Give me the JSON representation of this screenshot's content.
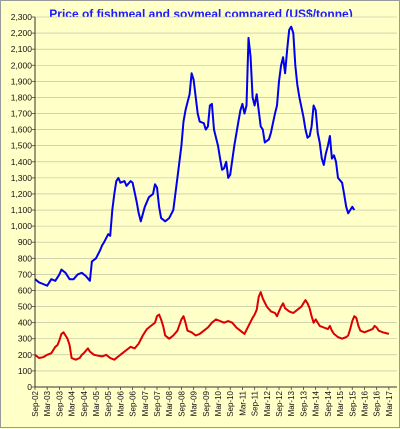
{
  "chart_data": {
    "type": "line",
    "title": "Price of fishmeal and soymeal compared (US$/tonne)",
    "xlabel": "",
    "ylabel": "",
    "ylim": [
      0,
      2300
    ],
    "y_ticks": [
      0,
      100,
      200,
      300,
      400,
      500,
      600,
      700,
      800,
      900,
      1000,
      1100,
      1200,
      1300,
      1400,
      1500,
      1600,
      1700,
      1800,
      1900,
      2000,
      2100,
      2200,
      2300
    ],
    "y_tick_labels": [
      "0",
      "100",
      "200",
      "300",
      "400",
      "500",
      "600",
      "700",
      "800",
      "900",
      "1,000",
      "1,100",
      "1,200",
      "1,300",
      "1,400",
      "1,500",
      "1,600",
      "1,700",
      "1,800",
      "1,900",
      "2,000",
      "2,100",
      "2,200",
      "2,300"
    ],
    "x_tick_labels": [
      "Sep-02",
      "Mar-03",
      "Sep-03",
      "Mar-04",
      "Sep-04",
      "Mar-05",
      "Sep-05",
      "Mar-06",
      "Sep-06",
      "Mar-07",
      "Sep-07",
      "Mar-08",
      "Sep-08",
      "Mar-09",
      "Sep-09",
      "Mar-10",
      "Sep-10",
      "Mar-11",
      "Sep-11",
      "Mar-12",
      "Sep-12",
      "Mar-13",
      "Sep-13",
      "Mar-14",
      "Sep-14",
      "Mar-15",
      "Sep-15",
      "Mar-16",
      "Sep-16",
      "Mar-17"
    ],
    "grid": true,
    "series": [
      {
        "color": "#0000ee",
        "points": [
          [
            "Sep-02",
            670
          ],
          [
            "Nov-02",
            650
          ],
          [
            "Jan-03",
            640
          ],
          [
            "Mar-03",
            630
          ],
          [
            "May-03",
            670
          ],
          [
            "Jul-03",
            660
          ],
          [
            "Sep-03",
            700
          ],
          [
            "Oct-03",
            730
          ],
          [
            "Dec-03",
            710
          ],
          [
            "Feb-04",
            670
          ],
          [
            "Apr-04",
            670
          ],
          [
            "Jun-04",
            700
          ],
          [
            "Aug-04",
            710
          ],
          [
            "Oct-04",
            690
          ],
          [
            "Dec-04",
            660
          ],
          [
            "Jan-05",
            780
          ],
          [
            "Mar-05",
            800
          ],
          [
            "May-05",
            850
          ],
          [
            "Jun-05",
            880
          ],
          [
            "Jul-05",
            900
          ],
          [
            "Sep-05",
            950
          ],
          [
            "Oct-05",
            940
          ],
          [
            "Nov-05",
            1100
          ],
          [
            "Dec-05",
            1200
          ],
          [
            "Jan-06",
            1280
          ],
          [
            "Feb-06",
            1300
          ],
          [
            "Mar-06",
            1270
          ],
          [
            "May-06",
            1280
          ],
          [
            "Jun-06",
            1250
          ],
          [
            "Aug-06",
            1280
          ],
          [
            "Sep-06",
            1270
          ],
          [
            "Nov-06",
            1150
          ],
          [
            "Dec-06",
            1080
          ],
          [
            "Jan-07",
            1030
          ],
          [
            "Mar-07",
            1120
          ],
          [
            "May-07",
            1180
          ],
          [
            "Jul-07",
            1200
          ],
          [
            "Aug-07",
            1260
          ],
          [
            "Sep-07",
            1240
          ],
          [
            "Oct-07",
            1120
          ],
          [
            "Nov-07",
            1050
          ],
          [
            "Jan-08",
            1030
          ],
          [
            "Mar-08",
            1050
          ],
          [
            "May-08",
            1100
          ],
          [
            "Jul-08",
            1300
          ],
          [
            "Sep-08",
            1500
          ],
          [
            "Oct-08",
            1650
          ],
          [
            "Nov-08",
            1720
          ],
          [
            "Dec-08",
            1770
          ],
          [
            "Jan-09",
            1820
          ],
          [
            "Feb-09",
            1950
          ],
          [
            "Mar-09",
            1910
          ],
          [
            "May-09",
            1700
          ],
          [
            "Jun-09",
            1650
          ],
          [
            "Aug-09",
            1640
          ],
          [
            "Sep-09",
            1600
          ],
          [
            "Oct-09",
            1620
          ],
          [
            "Nov-09",
            1750
          ],
          [
            "Dec-09",
            1760
          ],
          [
            "Jan-10",
            1600
          ],
          [
            "Mar-10",
            1500
          ],
          [
            "Apr-10",
            1420
          ],
          [
            "May-10",
            1350
          ],
          [
            "Jun-10",
            1360
          ],
          [
            "Jul-10",
            1400
          ],
          [
            "Aug-10",
            1300
          ],
          [
            "Sep-10",
            1320
          ],
          [
            "Nov-10",
            1500
          ],
          [
            "Jan-11",
            1650
          ],
          [
            "Feb-11",
            1720
          ],
          [
            "Mar-11",
            1760
          ],
          [
            "Apr-11",
            1700
          ],
          [
            "May-11",
            1750
          ],
          [
            "Jun-11",
            2170
          ],
          [
            "Jul-11",
            2050
          ],
          [
            "Aug-11",
            1800
          ],
          [
            "Sep-11",
            1750
          ],
          [
            "Oct-11",
            1820
          ],
          [
            "Dec-11",
            1620
          ],
          [
            "Jan-12",
            1600
          ],
          [
            "Feb-12",
            1520
          ],
          [
            "Apr-12",
            1540
          ],
          [
            "May-12",
            1580
          ],
          [
            "Jul-12",
            1700
          ],
          [
            "Aug-12",
            1750
          ],
          [
            "Sep-12",
            1900
          ],
          [
            "Oct-12",
            2000
          ],
          [
            "Nov-12",
            2050
          ],
          [
            "Dec-12",
            1950
          ],
          [
            "Jan-13",
            2100
          ],
          [
            "Feb-13",
            2220
          ],
          [
            "Mar-13",
            2240
          ],
          [
            "Apr-13",
            2200
          ],
          [
            "May-13",
            2000
          ],
          [
            "Jun-13",
            1880
          ],
          [
            "Jul-13",
            1800
          ],
          [
            "Sep-13",
            1680
          ],
          [
            "Oct-13",
            1600
          ],
          [
            "Nov-13",
            1550
          ],
          [
            "Dec-13",
            1560
          ],
          [
            "Jan-14",
            1620
          ],
          [
            "Feb-14",
            1750
          ],
          [
            "Mar-14",
            1720
          ],
          [
            "Apr-14",
            1580
          ],
          [
            "May-14",
            1520
          ],
          [
            "Jun-14",
            1420
          ],
          [
            "Jul-14",
            1380
          ],
          [
            "Aug-14",
            1450
          ],
          [
            "Sep-14",
            1500
          ],
          [
            "Oct-14",
            1560
          ],
          [
            "Nov-14",
            1420
          ],
          [
            "Dec-14",
            1440
          ],
          [
            "Jan-15",
            1400
          ],
          [
            "Feb-15",
            1300
          ],
          [
            "Apr-15",
            1270
          ],
          [
            "May-15",
            1200
          ],
          [
            "Jun-15",
            1120
          ],
          [
            "Jul-15",
            1080
          ],
          [
            "Aug-15",
            1100
          ],
          [
            "Sep-15",
            1120
          ],
          [
            "Oct-15",
            1100
          ]
        ]
      },
      {
        "color": "#dd0000",
        "points": [
          [
            "Sep-02",
            200
          ],
          [
            "Nov-02",
            180
          ],
          [
            "Jan-03",
            185
          ],
          [
            "Mar-03",
            200
          ],
          [
            "May-03",
            210
          ],
          [
            "Jul-03",
            250
          ],
          [
            "Aug-03",
            260
          ],
          [
            "Sep-03",
            290
          ],
          [
            "Oct-03",
            330
          ],
          [
            "Nov-03",
            340
          ],
          [
            "Dec-03",
            320
          ],
          [
            "Jan-04",
            300
          ],
          [
            "Feb-04",
            260
          ],
          [
            "Mar-04",
            180
          ],
          [
            "May-04",
            170
          ],
          [
            "Jul-04",
            180
          ],
          [
            "Aug-04",
            200
          ],
          [
            "Sep-04",
            210
          ],
          [
            "Nov-04",
            240
          ],
          [
            "Dec-04",
            220
          ],
          [
            "Feb-05",
            200
          ],
          [
            "Apr-05",
            195
          ],
          [
            "Jun-05",
            190
          ],
          [
            "Aug-05",
            200
          ],
          [
            "Oct-05",
            180
          ],
          [
            "Dec-05",
            170
          ],
          [
            "Feb-06",
            190
          ],
          [
            "Apr-06",
            210
          ],
          [
            "Jun-06",
            230
          ],
          [
            "Aug-06",
            250
          ],
          [
            "Oct-06",
            240
          ],
          [
            "Dec-06",
            270
          ],
          [
            "Feb-07",
            320
          ],
          [
            "Apr-07",
            360
          ],
          [
            "Jun-07",
            380
          ],
          [
            "Aug-07",
            400
          ],
          [
            "Sep-07",
            440
          ],
          [
            "Oct-07",
            450
          ],
          [
            "Nov-07",
            420
          ],
          [
            "Dec-07",
            380
          ],
          [
            "Jan-08",
            320
          ],
          [
            "Mar-08",
            300
          ],
          [
            "May-08",
            320
          ],
          [
            "Jul-08",
            350
          ],
          [
            "Sep-08",
            420
          ],
          [
            "Oct-08",
            440
          ],
          [
            "Nov-08",
            400
          ],
          [
            "Dec-08",
            350
          ],
          [
            "Feb-09",
            340
          ],
          [
            "Apr-09",
            320
          ],
          [
            "Jun-09",
            330
          ],
          [
            "Aug-09",
            350
          ],
          [
            "Oct-09",
            370
          ],
          [
            "Dec-09",
            400
          ],
          [
            "Feb-10",
            420
          ],
          [
            "Apr-10",
            410
          ],
          [
            "Jun-10",
            400
          ],
          [
            "Aug-10",
            410
          ],
          [
            "Oct-10",
            400
          ],
          [
            "Dec-10",
            370
          ],
          [
            "Feb-11",
            350
          ],
          [
            "Apr-11",
            330
          ],
          [
            "Jun-11",
            380
          ],
          [
            "Aug-11",
            430
          ],
          [
            "Sep-11",
            450
          ],
          [
            "Oct-11",
            480
          ],
          [
            "Nov-11",
            560
          ],
          [
            "Dec-11",
            590
          ],
          [
            "Jan-12",
            550
          ],
          [
            "Mar-12",
            500
          ],
          [
            "May-12",
            470
          ],
          [
            "Jul-12",
            460
          ],
          [
            "Aug-12",
            440
          ],
          [
            "Sep-12",
            470
          ],
          [
            "Oct-12",
            500
          ],
          [
            "Nov-12",
            520
          ],
          [
            "Dec-12",
            490
          ],
          [
            "Feb-13",
            470
          ],
          [
            "Apr-13",
            460
          ],
          [
            "Jun-13",
            480
          ],
          [
            "Aug-13",
            500
          ],
          [
            "Sep-13",
            520
          ],
          [
            "Oct-13",
            540
          ],
          [
            "Nov-13",
            520
          ],
          [
            "Dec-13",
            490
          ],
          [
            "Jan-14",
            440
          ],
          [
            "Feb-14",
            400
          ],
          [
            "Mar-14",
            420
          ],
          [
            "May-14",
            380
          ],
          [
            "Jul-14",
            370
          ],
          [
            "Sep-14",
            360
          ],
          [
            "Oct-14",
            380
          ],
          [
            "Nov-14",
            350
          ],
          [
            "Dec-14",
            330
          ],
          [
            "Feb-15",
            310
          ],
          [
            "Apr-15",
            300
          ],
          [
            "Jun-15",
            310
          ],
          [
            "Jul-15",
            320
          ],
          [
            "Aug-15",
            360
          ],
          [
            "Sep-15",
            410
          ],
          [
            "Oct-15",
            440
          ],
          [
            "Nov-15",
            430
          ],
          [
            "Dec-15",
            380
          ],
          [
            "Jan-16",
            350
          ],
          [
            "Mar-16",
            340
          ],
          [
            "May-16",
            350
          ],
          [
            "Jul-16",
            360
          ],
          [
            "Aug-16",
            380
          ],
          [
            "Sep-16",
            370
          ],
          [
            "Oct-16",
            350
          ],
          [
            "Dec-16",
            340
          ],
          [
            "Mar-17",
            330
          ]
        ]
      }
    ]
  }
}
